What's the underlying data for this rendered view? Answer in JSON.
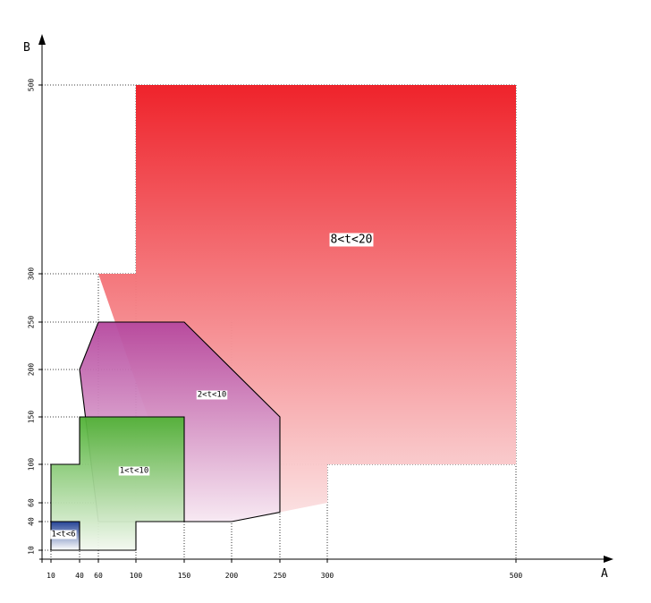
{
  "chart_data": {
    "type": "region-diagram",
    "x_axis_label": "A",
    "y_axis_label": "B",
    "x_ticks": [
      10,
      40,
      60,
      100,
      150,
      200,
      250,
      300,
      500
    ],
    "y_ticks": [
      10,
      40,
      60,
      100,
      150,
      200,
      250,
      300,
      500
    ],
    "grid": "dotted",
    "regions": [
      {
        "label": "8<t<20",
        "color_top": "#ee1c24",
        "color_bottom": "#fbe3e4",
        "outlined": false,
        "polygon": [
          [
            100,
            500
          ],
          [
            500,
            500
          ],
          [
            500,
            100
          ],
          [
            300,
            100
          ],
          [
            300,
            60
          ],
          [
            250,
            50
          ],
          [
            150,
            40
          ],
          [
            60,
            300
          ],
          [
            100,
            300
          ]
        ]
      },
      {
        "label": "2<t<10",
        "color_top": "#b5479e",
        "color_bottom": "#f7e9f3",
        "outlined": true,
        "polygon": [
          [
            60,
            250
          ],
          [
            150,
            250
          ],
          [
            250,
            150
          ],
          [
            250,
            50
          ],
          [
            200,
            40
          ],
          [
            60,
            40
          ],
          [
            40,
            200
          ]
        ]
      },
      {
        "label": "1<t<10",
        "color_top": "#4fb134",
        "color_bottom": "#f3f8f0",
        "outlined": true,
        "polygon": [
          [
            40,
            150
          ],
          [
            150,
            150
          ],
          [
            150,
            40
          ],
          [
            100,
            40
          ],
          [
            100,
            10
          ],
          [
            10,
            10
          ],
          [
            10,
            100
          ],
          [
            40,
            100
          ]
        ]
      },
      {
        "label": "1<t<6",
        "color_top": "#1c3b94",
        "color_bottom": "#ffffff",
        "outlined": true,
        "polygon": [
          [
            10,
            40
          ],
          [
            40,
            40
          ],
          [
            40,
            10
          ],
          [
            10,
            10
          ]
        ]
      }
    ]
  }
}
